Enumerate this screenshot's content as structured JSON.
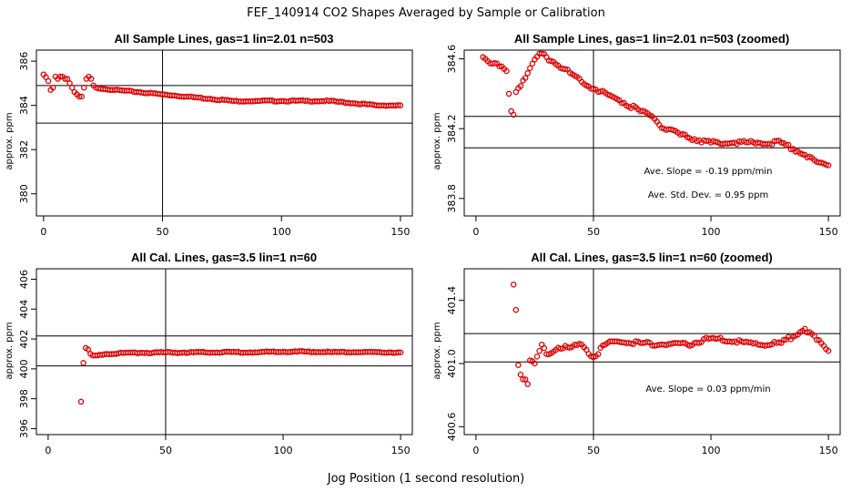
{
  "figure": {
    "title": "FEF_140914  CO2 Shapes Averaged by Sample or Calibration",
    "xlabel": "Jog Position (1 second resolution)"
  },
  "chart_data": [
    {
      "type": "scatter",
      "title": "All Sample Lines, gas=1 lin=2.01 n=503",
      "ylabel": "approx. ppm",
      "xlim": [
        -3,
        155
      ],
      "ylim": [
        379,
        386.5
      ],
      "xticks": [
        0,
        50,
        100,
        150
      ],
      "yticks": [
        380,
        382,
        384,
        386
      ],
      "vline": 50,
      "hlines": [
        384.9,
        383.2
      ],
      "series_points": [
        [
          0,
          385.4
        ],
        [
          2,
          385.1
        ],
        [
          3,
          384.7
        ],
        [
          4,
          384.8
        ],
        [
          5,
          385.3
        ],
        [
          6,
          385.2
        ],
        [
          7,
          385.3
        ],
        [
          8,
          385.3
        ],
        [
          9,
          385.2
        ],
        [
          10,
          385.2
        ],
        [
          11,
          385.0
        ],
        [
          12,
          384.8
        ],
        [
          13,
          384.6
        ],
        [
          14,
          384.5
        ],
        [
          15,
          384.4
        ],
        [
          16,
          384.4
        ],
        [
          17,
          384.8
        ],
        [
          18,
          385.2
        ],
        [
          19,
          385.3
        ],
        [
          20,
          385.2
        ],
        [
          21,
          384.9
        ],
        [
          22,
          384.8
        ],
        [
          30,
          384.7
        ],
        [
          40,
          384.6
        ],
        [
          50,
          384.5
        ],
        [
          60,
          384.4
        ],
        [
          70,
          384.3
        ],
        [
          80,
          384.2
        ],
        [
          90,
          384.2
        ],
        [
          100,
          384.2
        ],
        [
          110,
          384.2
        ],
        [
          120,
          384.2
        ],
        [
          130,
          384.1
        ],
        [
          140,
          384.0
        ],
        [
          150,
          384.0
        ]
      ],
      "point_color": "#e00000"
    },
    {
      "type": "scatter",
      "title": "All Sample Lines, gas=1 lin=2.01 n=503 (zoomed)",
      "ylabel": "approx. ppm",
      "xlim": [
        -5,
        155
      ],
      "ylim": [
        383.7,
        384.65
      ],
      "xticks": [
        0,
        50,
        100,
        150
      ],
      "yticks": [
        383.8,
        384.2,
        384.6
      ],
      "vline": 50,
      "hlines": [
        384.27,
        384.09
      ],
      "series_points": [
        [
          3,
          384.61
        ],
        [
          4,
          384.6
        ],
        [
          13,
          384.53
        ],
        [
          14,
          384.4
        ],
        [
          15,
          384.3
        ],
        [
          16,
          384.28
        ],
        [
          17,
          384.41
        ],
        [
          27,
          384.63
        ],
        [
          30,
          384.61
        ],
        [
          40,
          384.52
        ],
        [
          50,
          384.43
        ],
        [
          60,
          384.37
        ],
        [
          70,
          384.3
        ],
        [
          75,
          384.27
        ],
        [
          80,
          384.2
        ],
        [
          90,
          384.15
        ],
        [
          100,
          384.12
        ],
        [
          110,
          384.12
        ],
        [
          120,
          384.12
        ],
        [
          130,
          384.12
        ],
        [
          140,
          384.05
        ],
        [
          145,
          384.01
        ],
        [
          150,
          383.99
        ]
      ],
      "annotations": [
        "Ave. Slope =  -0.19  ppm/min",
        "Ave. Std. Dev. =  0.95  ppm"
      ],
      "point_color": "#e00000"
    },
    {
      "type": "scatter",
      "title": "All Cal. Lines, gas=3.5 lin=1 n=60",
      "ylabel": "approx. ppm",
      "xlim": [
        -5,
        155
      ],
      "ylim": [
        395.6,
        406.7
      ],
      "xticks": [
        0,
        50,
        100,
        150
      ],
      "yticks": [
        396,
        398,
        400,
        402,
        404,
        406
      ],
      "vline": 50,
      "hlines": [
        402.2,
        400.2
      ],
      "series_points": [
        [
          14,
          397.8
        ],
        [
          15,
          400.4
        ],
        [
          16,
          401.4
        ],
        [
          17,
          401.3
        ],
        [
          18,
          401.0
        ],
        [
          19,
          400.9
        ],
        [
          20,
          400.9
        ],
        [
          21,
          400.9
        ],
        [
          22,
          400.95
        ],
        [
          25,
          401.0
        ],
        [
          30,
          401.05
        ],
        [
          40,
          401.08
        ],
        [
          50,
          401.1
        ],
        [
          60,
          401.1
        ],
        [
          70,
          401.1
        ],
        [
          80,
          401.12
        ],
        [
          90,
          401.12
        ],
        [
          100,
          401.15
        ],
        [
          110,
          401.15
        ],
        [
          120,
          401.12
        ],
        [
          130,
          401.12
        ],
        [
          140,
          401.12
        ],
        [
          150,
          401.1
        ]
      ],
      "point_color": "#e00000"
    },
    {
      "type": "scatter",
      "title": "All Cal. Lines, gas=3.5 lin=1 n=60 (zoomed)",
      "ylabel": "approx. ppm",
      "xlim": [
        -5,
        155
      ],
      "ylim": [
        400.55,
        401.6
      ],
      "xticks": [
        0,
        50,
        100,
        150
      ],
      "yticks": [
        400.6,
        401.0,
        401.4
      ],
      "vline": 50,
      "hlines": [
        401.19,
        401.01
      ],
      "series_points": [
        [
          16,
          401.5
        ],
        [
          17,
          401.34
        ],
        [
          18,
          400.99
        ],
        [
          19,
          400.93
        ],
        [
          20,
          400.9
        ],
        [
          21,
          400.9
        ],
        [
          22,
          400.87
        ],
        [
          23,
          401.02
        ],
        [
          25,
          401.0
        ],
        [
          27,
          401.08
        ],
        [
          28,
          401.12
        ],
        [
          30,
          401.06
        ],
        [
          35,
          401.1
        ],
        [
          40,
          401.1
        ],
        [
          45,
          401.12
        ],
        [
          50,
          401.04
        ],
        [
          55,
          401.12
        ],
        [
          60,
          401.14
        ],
        [
          70,
          401.13
        ],
        [
          80,
          401.12
        ],
        [
          90,
          401.12
        ],
        [
          100,
          401.16
        ],
        [
          110,
          401.14
        ],
        [
          120,
          401.12
        ],
        [
          130,
          401.13
        ],
        [
          140,
          401.22
        ],
        [
          145,
          401.15
        ],
        [
          150,
          401.08
        ]
      ],
      "annotations": [
        "Ave. Slope =  0.03  ppm/min"
      ],
      "point_color": "#e00000"
    }
  ]
}
